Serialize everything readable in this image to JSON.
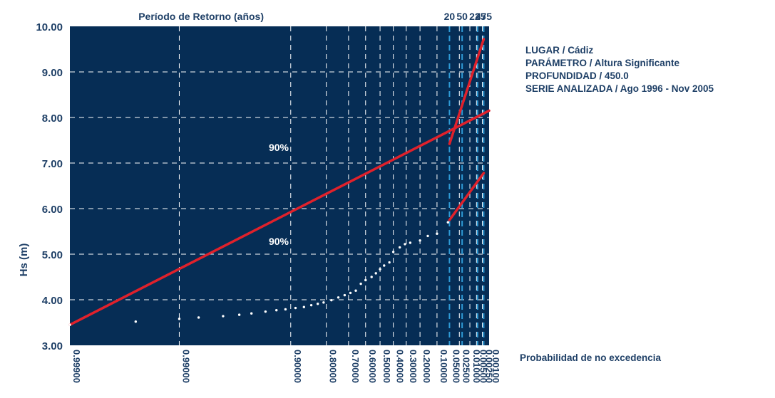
{
  "chart_data": {
    "type": "scatter",
    "top_axis_title": "Período de Retorno (años)",
    "ylabel": "Hs (m)",
    "xlabel": "Probabilidad de no excedencia",
    "ylim": [
      3.0,
      10.0
    ],
    "y_ticks": [
      "10.00",
      "9.00",
      "8.00",
      "7.00",
      "6.00",
      "5.00",
      "4.00",
      "3.00"
    ],
    "x_scale": "probability",
    "prob_ticks": [
      "0.99900",
      "0.99000",
      "0.90000",
      "0.80000",
      "0.70000",
      "0.60000",
      "0.50000",
      "0.40000",
      "0.30000",
      "0.20000",
      "0.10000",
      "0.05000",
      "0.02500",
      "0.01000",
      "0.00500",
      "0.00250",
      "0.00100"
    ],
    "return_period_ticks": [
      "20",
      "50",
      "225",
      "475"
    ],
    "confidence_labels": [
      "90%",
      "90%"
    ],
    "points": [
      {
        "p": 0.999,
        "hs": 3.45
      },
      {
        "p": 0.996,
        "hs": 3.52
      },
      {
        "p": 0.99,
        "hs": 3.58
      },
      {
        "p": 0.985,
        "hs": 3.61
      },
      {
        "p": 0.975,
        "hs": 3.64
      },
      {
        "p": 0.965,
        "hs": 3.67
      },
      {
        "p": 0.955,
        "hs": 3.7
      },
      {
        "p": 0.94,
        "hs": 3.74
      },
      {
        "p": 0.925,
        "hs": 3.77
      },
      {
        "p": 0.91,
        "hs": 3.79
      },
      {
        "p": 0.89,
        "hs": 3.82
      },
      {
        "p": 0.87,
        "hs": 3.84
      },
      {
        "p": 0.85,
        "hs": 3.88
      },
      {
        "p": 0.83,
        "hs": 3.91
      },
      {
        "p": 0.81,
        "hs": 3.94
      },
      {
        "p": 0.78,
        "hs": 3.99
      },
      {
        "p": 0.75,
        "hs": 4.05
      },
      {
        "p": 0.72,
        "hs": 4.1
      },
      {
        "p": 0.69,
        "hs": 4.15
      },
      {
        "p": 0.66,
        "hs": 4.2
      },
      {
        "p": 0.63,
        "hs": 4.35
      },
      {
        "p": 0.6,
        "hs": 4.43
      },
      {
        "p": 0.56,
        "hs": 4.5
      },
      {
        "p": 0.53,
        "hs": 4.58
      },
      {
        "p": 0.5,
        "hs": 4.67
      },
      {
        "p": 0.47,
        "hs": 4.75
      },
      {
        "p": 0.43,
        "hs": 4.82
      },
      {
        "p": 0.4,
        "hs": 5.05
      },
      {
        "p": 0.35,
        "hs": 5.15
      },
      {
        "p": 0.31,
        "hs": 5.22
      },
      {
        "p": 0.27,
        "hs": 5.25
      },
      {
        "p": 0.2,
        "hs": 5.3
      },
      {
        "p": 0.15,
        "hs": 5.4
      },
      {
        "p": 0.1,
        "hs": 5.45
      },
      {
        "p": 0.055,
        "hs": 5.7
      }
    ],
    "fit_line": [
      {
        "p": 0.999,
        "hs": 3.45
      },
      {
        "p": 0.001,
        "hs": 8.15
      }
    ],
    "upper_band": [
      {
        "p": 0.05,
        "hs": 7.42
      },
      {
        "p": 0.0021,
        "hs": 9.72
      }
    ],
    "lower_band": [
      {
        "p": 0.05,
        "hs": 5.75
      },
      {
        "p": 0.0021,
        "hs": 6.78
      }
    ],
    "colors": {
      "plot_bg": "#062d55",
      "grid": "#ffffff",
      "return_period_grid": "#2f9bd6",
      "fit_line": "#e0212b",
      "points": "#ffffff",
      "text": "#1e3f66"
    }
  },
  "info": {
    "lugar": "LUGAR / Cádiz",
    "parametro": "PARÁMETRO / Altura Significante",
    "profundidad": "PROFUNDIDAD / 450.0",
    "serie": "SERIE ANALIZADA / Ago 1996 - Nov 2005"
  }
}
